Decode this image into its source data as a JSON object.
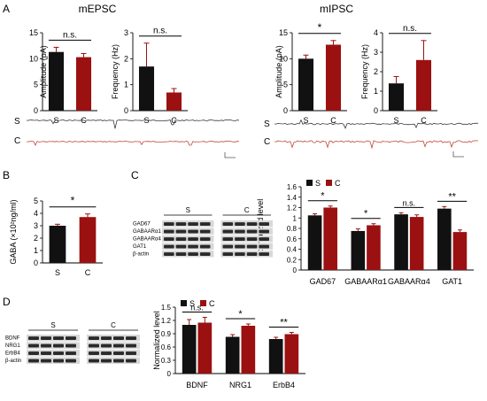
{
  "colors": {
    "s_bar": "#111111",
    "c_bar": "#9b1111",
    "error": "#9b1111",
    "trace_s": "#3a3a3a",
    "trace_c": "#c0483a"
  },
  "legend": {
    "s": "S",
    "c": "C"
  },
  "panels": {
    "A": {
      "letter": "A",
      "left_title": "mEPSC",
      "right_title": "mIPSC",
      "trace_labels": {
        "s": "S",
        "c": "C"
      }
    },
    "B": {
      "letter": "B"
    },
    "C": {
      "letter": "C",
      "blot_group_labels": [
        "S",
        "C"
      ],
      "blot_rows": [
        "GAD67",
        "GABAARα1",
        "GABAARα4",
        "GAT1",
        "β-actin"
      ]
    },
    "D": {
      "letter": "D",
      "blot_group_labels": [
        "S",
        "C"
      ],
      "blot_rows": [
        "BDNF",
        "NRG1",
        "ErbB4",
        "β-actin"
      ]
    }
  },
  "chart_data": [
    {
      "id": "A1",
      "type": "bar",
      "categories": [
        "S",
        "C"
      ],
      "values": [
        11.3,
        10.3
      ],
      "errors": [
        0.9,
        0.7
      ],
      "ylabel": "Amplitude (pA)",
      "ylim": [
        0,
        15
      ],
      "yticks": [
        0,
        5,
        10,
        15
      ],
      "annotation": {
        "text": "n.s.",
        "between": [
          "S",
          "C"
        ]
      }
    },
    {
      "id": "A2",
      "type": "bar",
      "categories": [
        "S",
        "C"
      ],
      "values": [
        1.7,
        0.7
      ],
      "errors": [
        0.9,
        0.15
      ],
      "ylabel": "Frequency (Hz)",
      "ylim": [
        0,
        3
      ],
      "yticks": [
        0,
        1,
        2,
        3
      ],
      "annotation": {
        "text": "n.s.",
        "between": [
          "S",
          "C"
        ]
      }
    },
    {
      "id": "A3",
      "type": "bar",
      "categories": [
        "S",
        "C"
      ],
      "values": [
        10.0,
        12.7
      ],
      "errors": [
        0.7,
        0.8
      ],
      "ylabel": "Amplitude (pA)",
      "ylim": [
        0,
        15
      ],
      "yticks": [
        0,
        5,
        10,
        15
      ],
      "annotation": {
        "text": "*",
        "between": [
          "S",
          "C"
        ]
      }
    },
    {
      "id": "A4",
      "type": "bar",
      "categories": [
        "S",
        "C"
      ],
      "values": [
        1.4,
        2.6
      ],
      "errors": [
        0.35,
        1.0
      ],
      "ylabel": "Frequency (Hz)",
      "ylim": [
        0,
        4
      ],
      "yticks": [
        0,
        1,
        2,
        3,
        4
      ],
      "annotation": {
        "text": "n.s.",
        "between": [
          "S",
          "C"
        ]
      }
    },
    {
      "id": "B",
      "type": "bar",
      "categories": [
        "S",
        "C"
      ],
      "values": [
        3.0,
        3.7
      ],
      "errors": [
        0.12,
        0.25
      ],
      "ylabel": "GABA (×10²ng/ml)",
      "ylim": [
        0,
        5
      ],
      "yticks": [
        0,
        1,
        2,
        3,
        4,
        5
      ],
      "annotation": {
        "text": "*",
        "between": [
          "S",
          "C"
        ]
      }
    },
    {
      "id": "C",
      "type": "bar",
      "categories": [
        "GAD67",
        "GABAARα1",
        "GABAARα4",
        "GAT1"
      ],
      "series": [
        {
          "name": "S",
          "values": [
            1.05,
            0.75,
            1.07,
            1.18
          ],
          "errors": [
            0.03,
            0.04,
            0.03,
            0.04
          ]
        },
        {
          "name": "C",
          "values": [
            1.2,
            0.86,
            1.02,
            0.73
          ],
          "errors": [
            0.03,
            0.03,
            0.04,
            0.04
          ]
        }
      ],
      "ylabel": "Normalized level",
      "ylim": [
        0,
        1.6
      ],
      "yticks": [
        0,
        0.2,
        0.4,
        0.6,
        0.8,
        1,
        1.2,
        1.4,
        1.6
      ],
      "annotations": [
        "*",
        "*",
        "n.s.",
        "**"
      ],
      "legend": "top-left"
    },
    {
      "id": "D",
      "type": "bar",
      "categories": [
        "BDNF",
        "NRG1",
        "ErbB4"
      ],
      "series": [
        {
          "name": "S",
          "values": [
            1.1,
            0.83,
            0.78
          ],
          "errors": [
            0.12,
            0.05,
            0.04
          ]
        },
        {
          "name": "C",
          "values": [
            1.15,
            1.08,
            0.89
          ],
          "errors": [
            0.12,
            0.04,
            0.04
          ]
        }
      ],
      "ylabel": "Normalized level",
      "ylim": [
        0,
        1.5
      ],
      "yticks": [
        0,
        0.3,
        0.6,
        0.9,
        1.2,
        1.5
      ],
      "annotations": [
        "n.s.",
        "*",
        "**"
      ],
      "legend": "top-left"
    }
  ]
}
